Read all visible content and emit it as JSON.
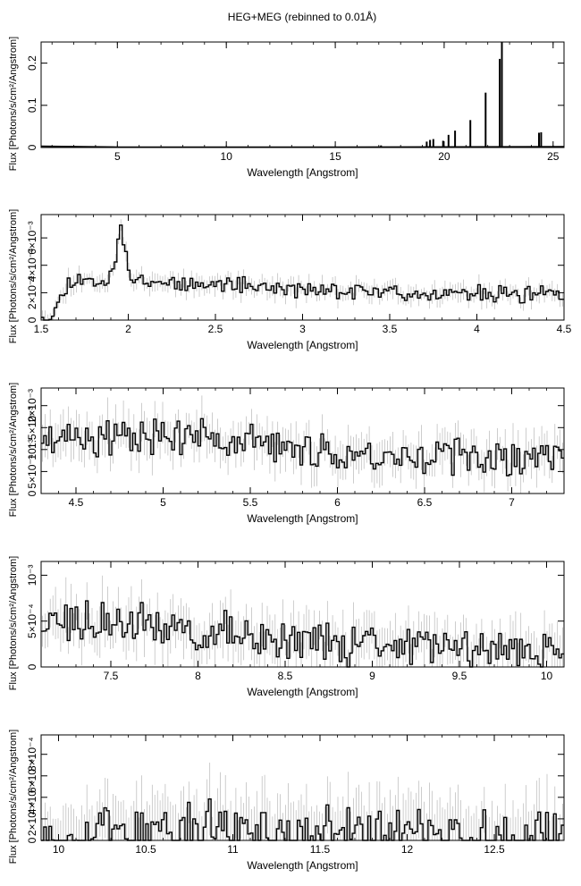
{
  "page": {
    "title": "HEG+MEG (rebinned to 0.01Å)"
  },
  "chart_data": [
    {
      "type": "line",
      "xlabel": "Wavelength [Angstrom]",
      "ylabel": "Flux [Photons/s/cm²/Angstrom]",
      "xlim": [
        1.5,
        25.5
      ],
      "ylim": [
        0,
        0.25
      ],
      "xticks": [
        5,
        10,
        15,
        20,
        25
      ],
      "xtick_labels": [
        "5",
        "10",
        "15",
        "20",
        "25"
      ],
      "yticks": [
        0,
        0.1,
        0.2
      ],
      "ytick_labels": [
        "0",
        "0.1",
        "0.2"
      ],
      "error_bars": false,
      "lines": [
        {
          "x": 17.1,
          "y": 0.005
        },
        {
          "x": 19.2,
          "y": 0.014
        },
        {
          "x": 19.35,
          "y": 0.018
        },
        {
          "x": 19.5,
          "y": 0.02
        },
        {
          "x": 19.95,
          "y": 0.016
        },
        {
          "x": 20.2,
          "y": 0.03
        },
        {
          "x": 20.5,
          "y": 0.04
        },
        {
          "x": 21.2,
          "y": 0.065
        },
        {
          "x": 21.9,
          "y": 0.13
        },
        {
          "x": 22.55,
          "y": 0.21
        },
        {
          "x": 22.65,
          "y": 0.25
        },
        {
          "x": 24.35,
          "y": 0.035
        },
        {
          "x": 24.45,
          "y": 0.036
        }
      ],
      "continuum": [
        [
          1.5,
          0.003
        ],
        [
          5,
          0.001
        ],
        [
          15,
          0.001
        ],
        [
          25.5,
          0.002
        ]
      ]
    },
    {
      "type": "line",
      "xlabel": "Wavelength [Angstrom]",
      "ylabel": "Flux [Photons/s/cm²/Angstrom]",
      "xlim": [
        1.5,
        4.5
      ],
      "ylim": [
        0,
        0.0077
      ],
      "xticks": [
        1.5,
        2,
        2.5,
        3,
        3.5,
        4,
        4.5
      ],
      "xtick_labels": [
        "1.5",
        "2",
        "2.5",
        "3",
        "3.5",
        "4",
        "4.5"
      ],
      "yticks": [
        0,
        0.002,
        0.004,
        0.006
      ],
      "ytick_labels": [
        "0",
        "2×10⁻³",
        "4×10⁻³",
        "6×10⁻³"
      ],
      "error_bars": true,
      "profile": [
        [
          1.5,
          0.0004
        ],
        [
          1.56,
          0.0004
        ],
        [
          1.6,
          0.0014
        ],
        [
          1.65,
          0.0027
        ],
        [
          1.7,
          0.003
        ],
        [
          1.8,
          0.0028
        ],
        [
          1.88,
          0.0029
        ],
        [
          1.92,
          0.0045
        ],
        [
          1.95,
          0.0068
        ],
        [
          1.98,
          0.0045
        ],
        [
          2.02,
          0.003
        ],
        [
          2.2,
          0.0028
        ],
        [
          2.6,
          0.0026
        ],
        [
          3.0,
          0.0022
        ],
        [
          3.5,
          0.002
        ],
        [
          4.0,
          0.0019
        ],
        [
          4.5,
          0.0018
        ]
      ],
      "noise": 0.00045,
      "seed": 11
    },
    {
      "type": "line",
      "xlabel": "Wavelength [Angstrom]",
      "ylabel": "Flux [Photons/s/cm²/Angstrom]",
      "xlim": [
        4.3,
        7.3
      ],
      "ylim": [
        0,
        0.0024
      ],
      "xticks": [
        4.5,
        5,
        5.5,
        6,
        6.5,
        7
      ],
      "xtick_labels": [
        "4.5",
        "5",
        "5.5",
        "6",
        "6.5",
        "7"
      ],
      "yticks": [
        0,
        0.0005,
        0.001,
        0.0015,
        0.002
      ],
      "ytick_labels": [
        "0",
        "5×10⁻⁴",
        "10⁻³",
        "1.5×10⁻³",
        "2×10⁻³"
      ],
      "error_bars": true,
      "profile": [
        [
          4.3,
          0.0013
        ],
        [
          4.8,
          0.0013
        ],
        [
          5.4,
          0.0012
        ],
        [
          6.0,
          0.0009
        ],
        [
          6.5,
          0.00085
        ],
        [
          7.3,
          0.0008
        ]
      ],
      "noise": 0.00032,
      "seed": 23
    },
    {
      "type": "line",
      "xlabel": "Wavelength [Angstrom]",
      "ylabel": "Flux [Photons/s/cm²/Angstrom]",
      "xlim": [
        7.1,
        10.1
      ],
      "ylim": [
        0,
        0.00115
      ],
      "xticks": [
        7.5,
        8,
        8.5,
        9,
        9.5,
        10
      ],
      "xtick_labels": [
        "7.5",
        "8",
        "8.5",
        "9",
        "9.5",
        "10"
      ],
      "yticks": [
        0,
        0.0005,
        0.001
      ],
      "ytick_labels": [
        "0",
        "5×10⁻⁴",
        "10⁻³"
      ],
      "error_bars": true,
      "profile": [
        [
          7.1,
          0.0005
        ],
        [
          7.5,
          0.00048
        ],
        [
          8.0,
          0.00038
        ],
        [
          8.5,
          0.0003
        ],
        [
          9.0,
          0.00024
        ],
        [
          9.5,
          0.0002
        ],
        [
          10.1,
          0.00018
        ]
      ],
      "noise": 0.00018,
      "seed": 37
    },
    {
      "type": "line",
      "xlabel": "Wavelength [Angstrom]",
      "ylabel": "Flux [Photons/s/cm²/Angstrom]",
      "xlim": [
        9.9,
        12.9
      ],
      "ylim": [
        0,
        0.00098
      ],
      "xticks": [
        10,
        10.5,
        11,
        11.5,
        12,
        12.5
      ],
      "xtick_labels": [
        "10",
        "10.5",
        "11",
        "11.5",
        "12",
        "12.5"
      ],
      "yticks": [
        0,
        0.0002,
        0.0004,
        0.0006,
        0.0008
      ],
      "ytick_labels": [
        "0",
        "2×10⁻⁴",
        "4×10⁻⁴",
        "6×10⁻⁴",
        "8×10⁻⁴"
      ],
      "error_bars": true,
      "profile": [
        [
          9.9,
          5e-05
        ],
        [
          12.9,
          5e-05
        ]
      ],
      "noise": 0.00022,
      "seed": 53
    }
  ]
}
